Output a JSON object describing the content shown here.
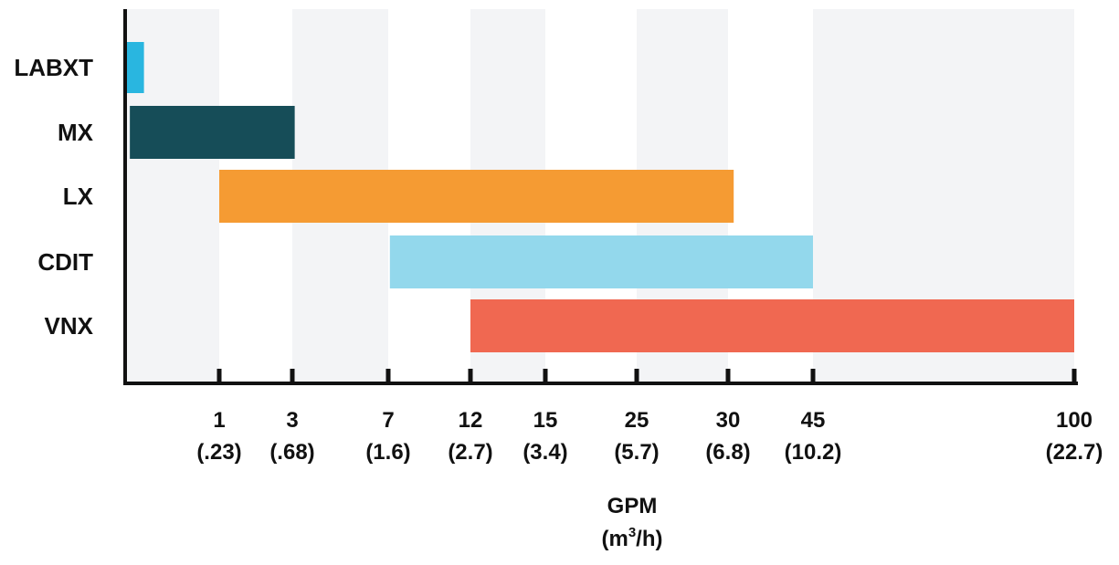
{
  "chart_data": {
    "type": "bar",
    "orientation": "horizontal",
    "title": "",
    "xlabel": "GPM",
    "xlabel_unit_prefix": "(m",
    "xlabel_unit_sup": "3",
    "xlabel_unit_suffix": "/h)",
    "ylabel": "",
    "grid": "alternating vertical bands",
    "categories": [
      "LABXT",
      "MX",
      "LX",
      "CDIT",
      "VNX"
    ],
    "ticks": [
      {
        "gpm": "1",
        "m3h": "(.23)"
      },
      {
        "gpm": "3",
        "m3h": "(.68)"
      },
      {
        "gpm": "7",
        "m3h": "(1.6)"
      },
      {
        "gpm": "12",
        "m3h": "(2.7)"
      },
      {
        "gpm": "15",
        "m3h": "(3.4)"
      },
      {
        "gpm": "25",
        "m3h": "(5.7)"
      },
      {
        "gpm": "30",
        "m3h": "(6.8)"
      },
      {
        "gpm": "45",
        "m3h": "(10.2)"
      },
      {
        "gpm": "100",
        "m3h": "(22.7)"
      }
    ],
    "ranges": [
      {
        "category": "LABXT",
        "min": 0.01,
        "max": 0.2,
        "color": "#29b6e0"
      },
      {
        "category": "MX",
        "min": 0.05,
        "max": 3.1,
        "color": "#164d58"
      },
      {
        "category": "LX",
        "min": 1,
        "max": 31,
        "color": "#f59b33"
      },
      {
        "category": "CDIT",
        "min": 7.1,
        "max": 45,
        "color": "#93d8ec"
      },
      {
        "category": "VNX",
        "min": 12,
        "max": 100,
        "color": "#f06851"
      }
    ],
    "colors": {
      "band": "#f3f4f6",
      "axis": "#111111",
      "text": "#111111"
    }
  }
}
